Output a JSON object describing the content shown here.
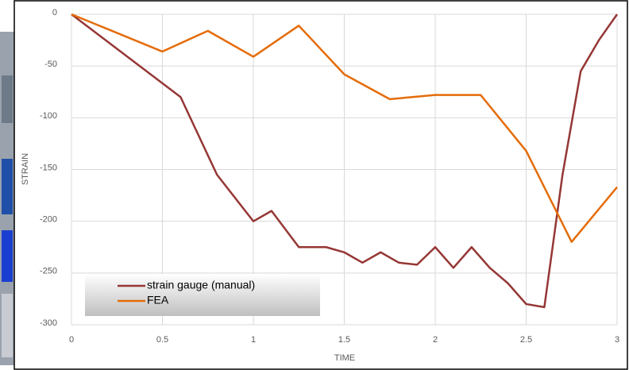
{
  "chart_data": {
    "type": "line",
    "x_label": "TIME",
    "y_label": "STRAIN",
    "xlim": [
      0,
      3
    ],
    "xticks": [
      0,
      0.5,
      1,
      1.5,
      2,
      2.5,
      3
    ],
    "ylim": [
      -300,
      0
    ],
    "yticks": [
      0,
      -50,
      -100,
      -150,
      -200,
      -250,
      -300
    ],
    "grid": true,
    "legend": "lower left",
    "series": [
      {
        "name": "strain gauge (manual)",
        "color": "#953735",
        "x": [
          0,
          0.6,
          0.8,
          1.0,
          1.1,
          1.25,
          1.4,
          1.5,
          1.6,
          1.7,
          1.8,
          1.9,
          2.0,
          2.1,
          2.2,
          2.3,
          2.4,
          2.5,
          2.6,
          2.7,
          2.8,
          2.9,
          3.0
        ],
        "values": [
          0,
          -80,
          -155,
          -200,
          -190,
          -225,
          -225,
          -230,
          -240,
          -230,
          -240,
          -242,
          -225,
          -245,
          -225,
          -245,
          -260,
          -280,
          -283,
          -155,
          -55,
          -25,
          0
        ]
      },
      {
        "name": "FEA",
        "color": "#e46c0a",
        "x": [
          0,
          0.5,
          0.75,
          1.0,
          1.25,
          1.5,
          1.75,
          2.0,
          2.25,
          2.5,
          2.75,
          3.0
        ],
        "values": [
          0,
          -36,
          -16,
          -41,
          -11,
          -58,
          -82,
          -78,
          -78,
          -132,
          -220,
          -167
        ]
      }
    ]
  }
}
